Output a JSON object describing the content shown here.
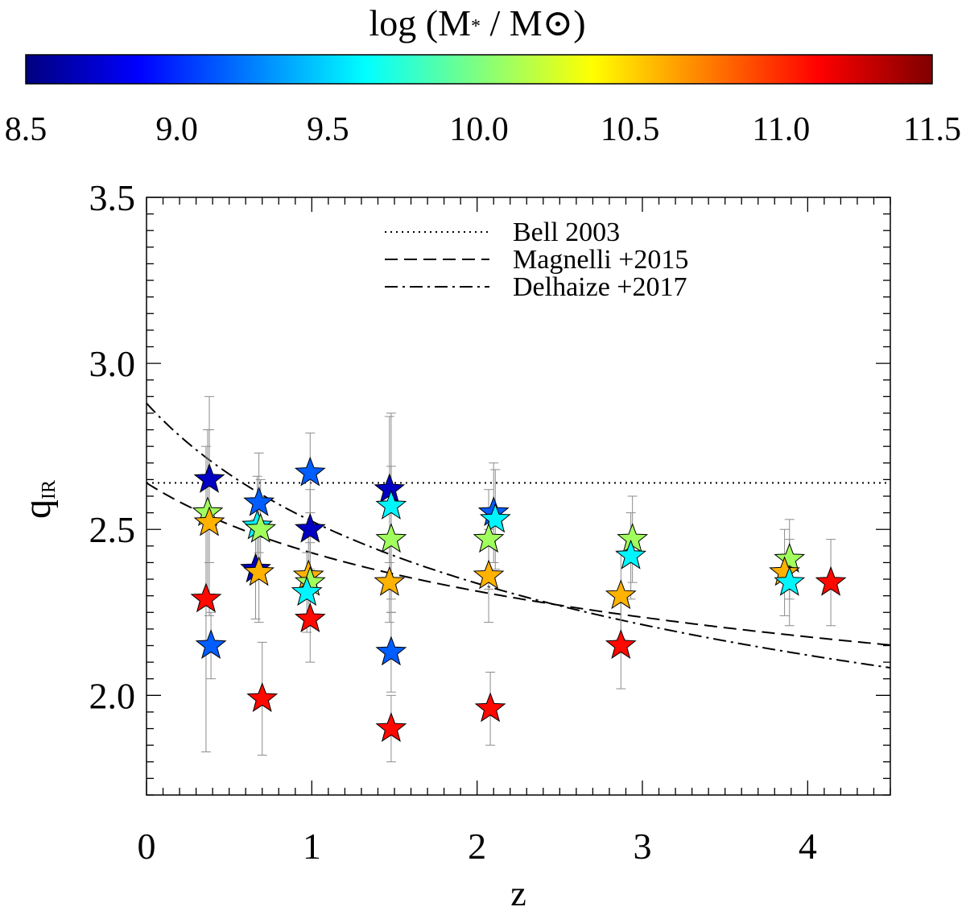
{
  "colorbar": {
    "title_prefix": "log (M",
    "title_star": "*",
    "title_mid": " / M",
    "title_suffix": ")",
    "range": [
      8.5,
      11.5
    ],
    "tick_labels": [
      "8.5",
      "9.0",
      "9.5",
      "10.0",
      "10.5",
      "11.0",
      "11.5"
    ],
    "stops": [
      "#00007f",
      "#0000ff",
      "#007fff",
      "#00ffff",
      "#7fff7f",
      "#ffff00",
      "#ff7f00",
      "#ff0000",
      "#7f0000"
    ]
  },
  "chart_data": {
    "type": "scatter",
    "xlabel": "z",
    "ylabel_main": "q",
    "ylabel_sub": "IR",
    "xlim": [
      0,
      4.5
    ],
    "ylim": [
      1.7,
      3.5
    ],
    "x_ticks": [
      0,
      1,
      2,
      3,
      4
    ],
    "x_tick_labels": [
      "0",
      "1",
      "2",
      "3",
      "4"
    ],
    "y_ticks": [
      2.0,
      2.5,
      3.0,
      3.5
    ],
    "y_tick_labels": [
      "2.0",
      "2.5",
      "3.0",
      "3.5"
    ],
    "legend_position": "top-center",
    "lines": [
      {
        "name": "Bell 2003",
        "style": "dotted",
        "formula": "q = 2.64"
      },
      {
        "name": "Magnelli +2015",
        "style": "dashed",
        "formula": "q = 2.64 (1+z)^-0.12"
      },
      {
        "name": "Delhaize +2017",
        "style": "dashdot",
        "formula": "q = 2.88 (1+z)^-0.19"
      }
    ],
    "points": [
      {
        "z": 0.38,
        "q": 2.65,
        "logM": 8.7,
        "err": 0.25
      },
      {
        "z": 0.37,
        "q": 2.55,
        "logM": 10.1,
        "err": 0.25
      },
      {
        "z": 0.38,
        "q": 2.52,
        "logM": 10.6,
        "err": 0.28
      },
      {
        "z": 0.36,
        "q": 2.29,
        "logM": 11.1,
        "err": 0.46
      },
      {
        "z": 0.39,
        "q": 2.15,
        "logM": 9.15,
        "err": 0.1
      },
      {
        "z": 0.68,
        "q": 2.58,
        "logM": 9.15,
        "err": 0.15
      },
      {
        "z": 0.67,
        "q": 2.51,
        "logM": 9.6,
        "err": 0.15
      },
      {
        "z": 0.69,
        "q": 2.5,
        "logM": 10.1,
        "err": 0.15
      },
      {
        "z": 0.66,
        "q": 2.38,
        "logM": 8.7,
        "err": 0.15
      },
      {
        "z": 0.68,
        "q": 2.37,
        "logM": 10.6,
        "err": 0.15
      },
      {
        "z": 0.7,
        "q": 1.99,
        "logM": 11.1,
        "err": 0.17
      },
      {
        "z": 0.99,
        "q": 2.67,
        "logM": 9.15,
        "err": 0.12
      },
      {
        "z": 0.99,
        "q": 2.5,
        "logM": 8.7,
        "err": 0.12
      },
      {
        "z": 0.98,
        "q": 2.36,
        "logM": 10.6,
        "err": 0.12
      },
      {
        "z": 0.99,
        "q": 2.34,
        "logM": 10.1,
        "err": 0.12
      },
      {
        "z": 0.97,
        "q": 2.31,
        "logM": 9.6,
        "err": 0.12
      },
      {
        "z": 0.99,
        "q": 2.23,
        "logM": 11.1,
        "err": 0.13
      },
      {
        "z": 1.47,
        "q": 2.62,
        "logM": 8.7,
        "err": 0.22
      },
      {
        "z": 1.48,
        "q": 2.57,
        "logM": 9.6,
        "err": 0.28
      },
      {
        "z": 1.48,
        "q": 2.47,
        "logM": 10.1,
        "err": 0.22
      },
      {
        "z": 1.47,
        "q": 2.34,
        "logM": 10.6,
        "err": 0.12
      },
      {
        "z": 1.48,
        "q": 2.13,
        "logM": 9.15,
        "err": 0.12
      },
      {
        "z": 1.48,
        "q": 1.9,
        "logM": 11.1,
        "err": 0.1
      },
      {
        "z": 2.1,
        "q": 2.55,
        "logM": 9.15,
        "err": 0.15
      },
      {
        "z": 2.11,
        "q": 2.53,
        "logM": 9.6,
        "err": 0.15
      },
      {
        "z": 2.07,
        "q": 2.47,
        "logM": 10.1,
        "err": 0.15
      },
      {
        "z": 2.07,
        "q": 2.36,
        "logM": 10.6,
        "err": 0.14
      },
      {
        "z": 2.08,
        "q": 1.96,
        "logM": 11.1,
        "err": 0.11
      },
      {
        "z": 2.94,
        "q": 2.47,
        "logM": 10.1,
        "err": 0.13
      },
      {
        "z": 2.93,
        "q": 2.42,
        "logM": 9.6,
        "err": 0.13
      },
      {
        "z": 2.87,
        "q": 2.3,
        "logM": 10.6,
        "err": 0.13
      },
      {
        "z": 2.87,
        "q": 2.15,
        "logM": 11.1,
        "err": 0.13
      },
      {
        "z": 3.89,
        "q": 2.41,
        "logM": 10.1,
        "err": 0.12
      },
      {
        "z": 3.86,
        "q": 2.37,
        "logM": 10.6,
        "err": 0.13
      },
      {
        "z": 3.89,
        "q": 2.34,
        "logM": 9.6,
        "err": 0.13
      },
      {
        "z": 4.14,
        "q": 2.34,
        "logM": 11.1,
        "err": 0.13
      }
    ]
  }
}
